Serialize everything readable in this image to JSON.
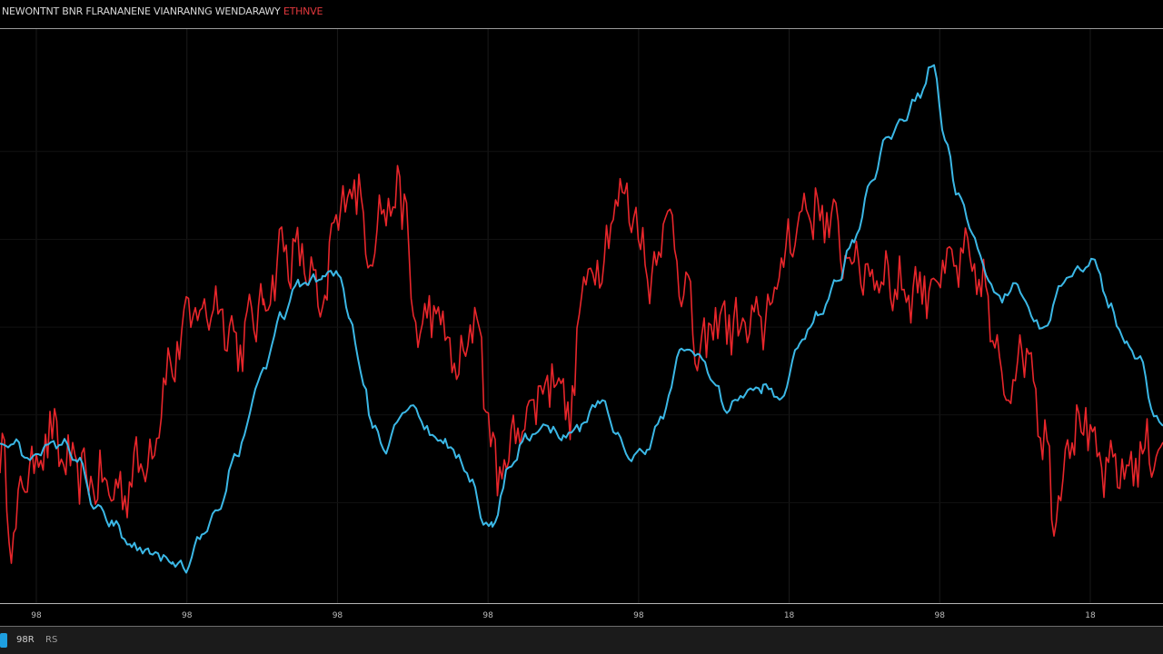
{
  "header": {
    "title": "NEWONTNT BNR FLRANANENE VIANRANNG WENDARAWY",
    "title_accent": "ETHNVE"
  },
  "footer": {
    "label_a": "98R",
    "label_b": "RS"
  },
  "colors": {
    "background": "#000000",
    "series_red": "#e8262b",
    "series_blue": "#3bb8e6",
    "grid": "#1a1a1a",
    "axis": "#b5b5b5"
  },
  "chart_data": {
    "type": "line",
    "title": "",
    "xlabel": "",
    "ylabel": "",
    "x_ticks": [
      "98",
      "98",
      "98",
      "98",
      "98",
      "18",
      "98",
      "18"
    ],
    "grid": true,
    "xlim": [
      0,
      1280
    ],
    "ylim": [
      0,
      100
    ],
    "series": [
      {
        "color": "#e8262b",
        "noise": 9,
        "points": [
          [
            0,
            25
          ],
          [
            15,
            10
          ],
          [
            30,
            22
          ],
          [
            55,
            28
          ],
          [
            80,
            22
          ],
          [
            100,
            20
          ],
          [
            130,
            18
          ],
          [
            165,
            25
          ],
          [
            185,
            40
          ],
          [
            210,
            50
          ],
          [
            240,
            52
          ],
          [
            262,
            45
          ],
          [
            290,
            52
          ],
          [
            310,
            62
          ],
          [
            335,
            60
          ],
          [
            355,
            50
          ],
          [
            370,
            68
          ],
          [
            390,
            75
          ],
          [
            405,
            63
          ],
          [
            425,
            70
          ],
          [
            445,
            72
          ],
          [
            455,
            48
          ],
          [
            480,
            50
          ],
          [
            505,
            40
          ],
          [
            525,
            50
          ],
          [
            540,
            28
          ],
          [
            550,
            20
          ],
          [
            565,
            28
          ],
          [
            590,
            35
          ],
          [
            610,
            40
          ],
          [
            630,
            32
          ],
          [
            640,
            55
          ],
          [
            665,
            62
          ],
          [
            680,
            72
          ],
          [
            695,
            70
          ],
          [
            715,
            58
          ],
          [
            735,
            68
          ],
          [
            750,
            58
          ],
          [
            770,
            42
          ],
          [
            790,
            50
          ],
          [
            810,
            48
          ],
          [
            835,
            48
          ],
          [
            855,
            55
          ],
          [
            870,
            65
          ],
          [
            890,
            70
          ],
          [
            910,
            68
          ],
          [
            930,
            62
          ],
          [
            950,
            58
          ],
          [
            970,
            58
          ],
          [
            990,
            55
          ],
          [
            1010,
            55
          ],
          [
            1040,
            58
          ],
          [
            1060,
            60
          ],
          [
            1085,
            55
          ],
          [
            1095,
            42
          ],
          [
            1110,
            38
          ],
          [
            1130,
            45
          ],
          [
            1150,
            28
          ],
          [
            1160,
            15
          ],
          [
            1180,
            30
          ],
          [
            1195,
            30
          ],
          [
            1210,
            22
          ],
          [
            1240,
            22
          ],
          [
            1260,
            25
          ],
          [
            1280,
            27
          ]
        ]
      },
      {
        "color": "#3bb8e6",
        "noise": 1.5,
        "points": [
          [
            0,
            26
          ],
          [
            15,
            27
          ],
          [
            30,
            24
          ],
          [
            50,
            26
          ],
          [
            68,
            27
          ],
          [
            85,
            24
          ],
          [
            105,
            15
          ],
          [
            125,
            12
          ],
          [
            145,
            8
          ],
          [
            165,
            7
          ],
          [
            190,
            5
          ],
          [
            205,
            4
          ],
          [
            222,
            10
          ],
          [
            240,
            14
          ],
          [
            260,
            25
          ],
          [
            290,
            40
          ],
          [
            310,
            50
          ],
          [
            330,
            56
          ],
          [
            355,
            57
          ],
          [
            372,
            58
          ],
          [
            385,
            50
          ],
          [
            400,
            38
          ],
          [
            410,
            30
          ],
          [
            425,
            26
          ],
          [
            440,
            32
          ],
          [
            455,
            34
          ],
          [
            470,
            29
          ],
          [
            490,
            27
          ],
          [
            505,
            24
          ],
          [
            520,
            20
          ],
          [
            532,
            12
          ],
          [
            542,
            12
          ],
          [
            560,
            22
          ],
          [
            580,
            28
          ],
          [
            600,
            30
          ],
          [
            620,
            28
          ],
          [
            640,
            30
          ],
          [
            660,
            35
          ],
          [
            680,
            28
          ],
          [
            695,
            24
          ],
          [
            712,
            26
          ],
          [
            730,
            32
          ],
          [
            750,
            44
          ],
          [
            770,
            43
          ],
          [
            785,
            38
          ],
          [
            800,
            33
          ],
          [
            820,
            36
          ],
          [
            840,
            37
          ],
          [
            860,
            35
          ],
          [
            880,
            45
          ],
          [
            900,
            50
          ],
          [
            920,
            56
          ],
          [
            940,
            64
          ],
          [
            960,
            75
          ],
          [
            975,
            82
          ],
          [
            995,
            86
          ],
          [
            1010,
            90
          ],
          [
            1028,
            96
          ],
          [
            1040,
            82
          ],
          [
            1055,
            72
          ],
          [
            1070,
            65
          ],
          [
            1085,
            58
          ],
          [
            1100,
            53
          ],
          [
            1120,
            56
          ],
          [
            1135,
            50
          ],
          [
            1150,
            47
          ],
          [
            1165,
            55
          ],
          [
            1180,
            58
          ],
          [
            1205,
            60
          ],
          [
            1220,
            52
          ],
          [
            1240,
            45
          ],
          [
            1255,
            42
          ],
          [
            1270,
            32
          ],
          [
            1280,
            30
          ]
        ]
      }
    ]
  }
}
